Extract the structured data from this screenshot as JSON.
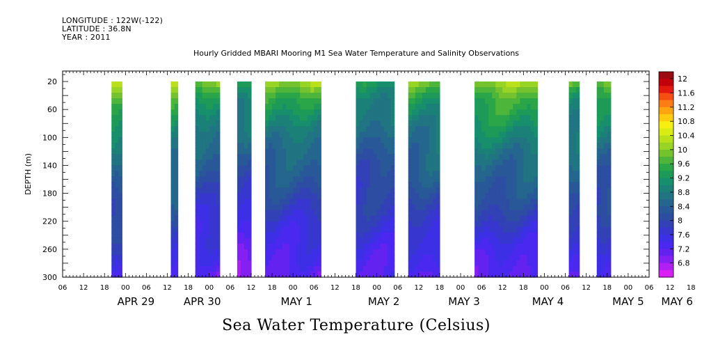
{
  "header": {
    "longitude": "LONGITUDE : 122W(-122)",
    "latitude": "LATITUDE : 36.8N",
    "year": "YEAR : 2011"
  },
  "chart_data": {
    "type": "heatmap",
    "title": "Hourly Gridded MBARI Mooring M1 Sea Water Temperature and Salinity Observations",
    "xlabel": "Sea Water Temperature (Celsius)",
    "ylabel": "DEPTH (m)",
    "ylim": [
      300,
      5
    ],
    "y_ticks": [
      20,
      60,
      100,
      140,
      180,
      220,
      260,
      300
    ],
    "x_start": "Apr 29 2011 06:00",
    "x_hour_labels": [
      "06",
      "12",
      "18",
      "00",
      "06",
      "12",
      "18",
      "00",
      "06",
      "12",
      "18",
      "00",
      "06",
      "12",
      "18",
      "00",
      "06",
      "12",
      "18",
      "00",
      "06",
      "12",
      "18",
      "00",
      "06",
      "12",
      "18",
      "00",
      "06",
      "12",
      "18",
      "00",
      "06",
      "12",
      "18",
      "00",
      "06"
    ],
    "day_labels": [
      "APR 29",
      "APR 30",
      "MAY  1",
      "MAY  2",
      "MAY  3",
      "MAY  4",
      "MAY  5",
      "MAY  6"
    ],
    "colorbar": {
      "labels": [
        "12",
        "11.6",
        "11.2",
        "10.8",
        "10.4",
        "10",
        "9.6",
        "9.2",
        "8.8",
        "8.4",
        "8",
        "7.6",
        "7.2",
        "6.8"
      ],
      "colors_top_to_bottom": [
        "#9b0a10",
        "#c2000c",
        "#e2190e",
        "#f54f14",
        "#fd7d15",
        "#ffa50f",
        "#ffcc10",
        "#f7ee12",
        "#d9ec13",
        "#b9e01b",
        "#98d426",
        "#74c32e",
        "#4db53a",
        "#2aa548",
        "#1d9a58",
        "#178f6c",
        "#1a8078",
        "#217482",
        "#25668e",
        "#285898",
        "#2d4da3",
        "#3241b6",
        "#3737d0",
        "#3c2fe6",
        "#4a28f0",
        "#6422f0",
        "#8620f2",
        "#b020f2",
        "#d820f4"
      ]
    },
    "segments": [
      {
        "start": 14,
        "end": 17,
        "temp_surface": 10.0,
        "temp_bottom": 7.4
      },
      {
        "start": 31,
        "end": 33,
        "temp_surface": 10.0,
        "temp_bottom": 7.4
      },
      {
        "start": 38,
        "end": 45,
        "temp_surface": 9.6,
        "temp_bottom": 7.1
      },
      {
        "start": 50,
        "end": 54,
        "temp_surface": 9.4,
        "temp_bottom": 6.9
      },
      {
        "start": 58,
        "end": 74,
        "temp_surface": 9.8,
        "temp_bottom": 7.1
      },
      {
        "start": 84,
        "end": 95,
        "temp_surface": 9.2,
        "temp_bottom": 7.3
      },
      {
        "start": 99,
        "end": 108,
        "temp_surface": 9.6,
        "temp_bottom": 7.3
      },
      {
        "start": 118,
        "end": 136,
        "temp_surface": 10.0,
        "temp_bottom": 7.2
      },
      {
        "start": 145,
        "end": 148,
        "temp_surface": 9.6,
        "temp_bottom": 7.4
      },
      {
        "start": 153,
        "end": 157,
        "temp_surface": 9.6,
        "temp_bottom": 7.4
      }
    ]
  }
}
